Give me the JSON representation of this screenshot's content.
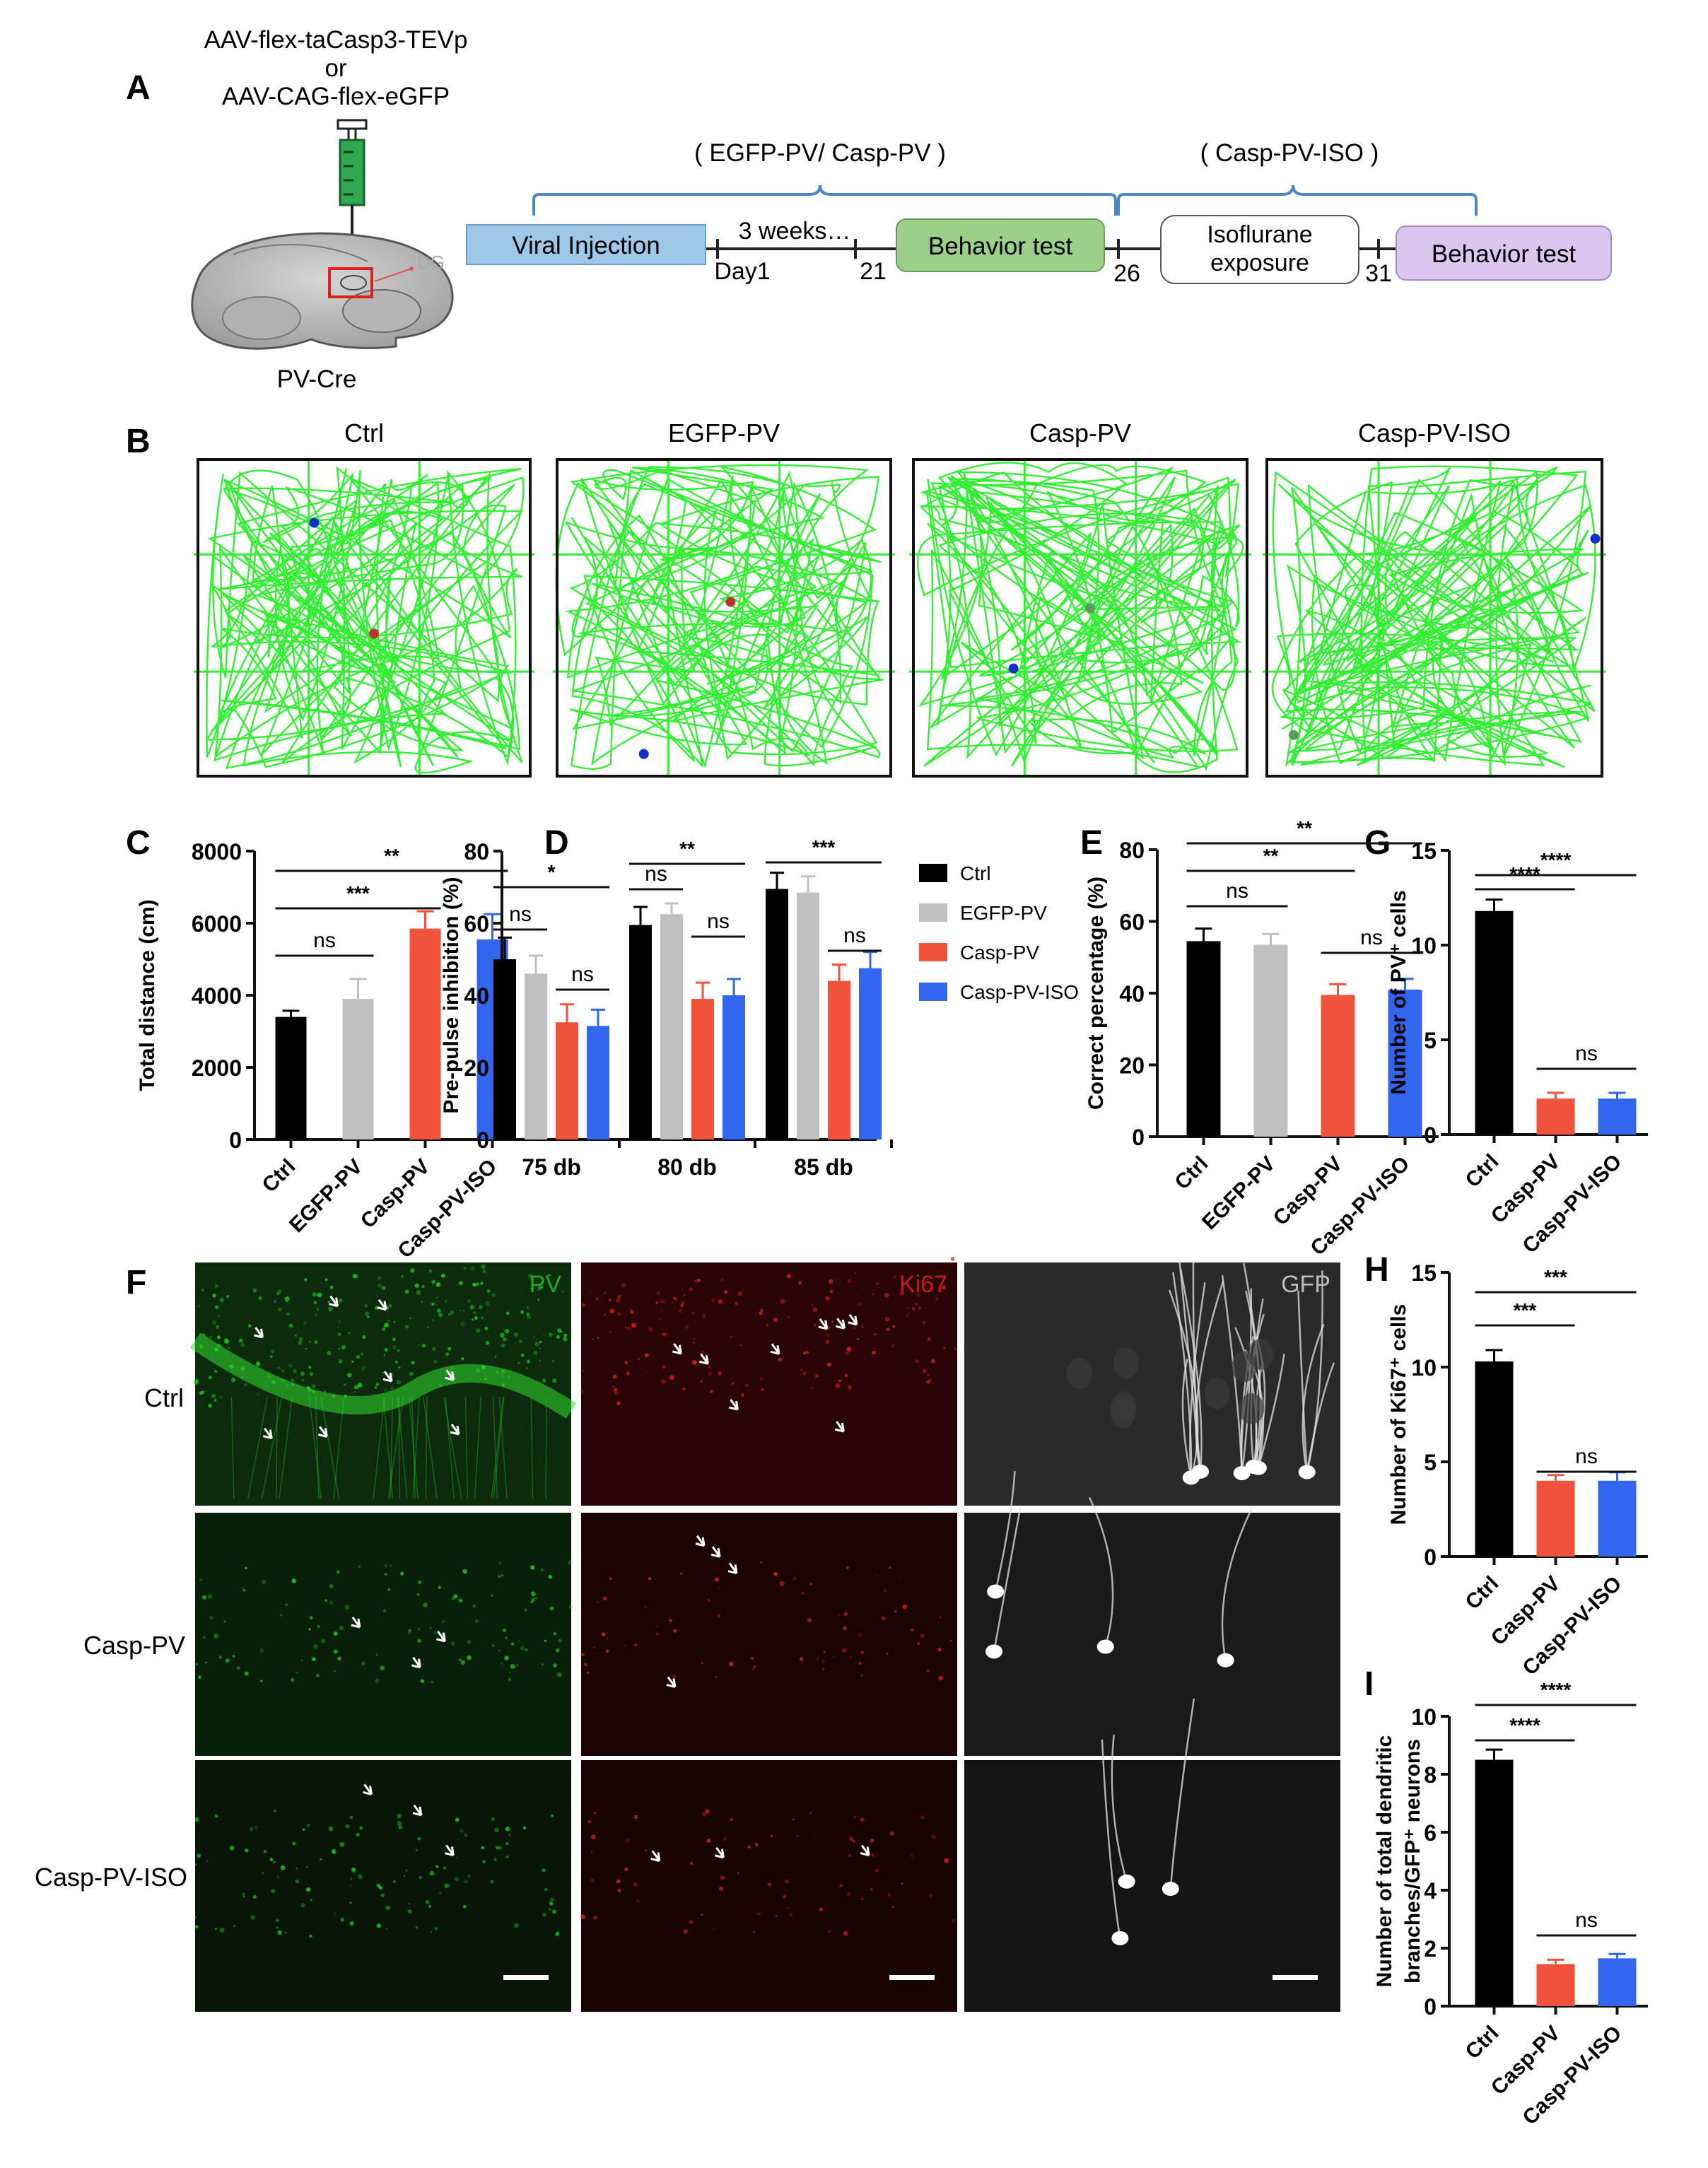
{
  "panels": {
    "A": {
      "letter": "A",
      "virus_line1": "AAV-flex-taCasp3-TEVp",
      "virus_or": "or",
      "virus_line2": "AAV-CAG-flex-eGFP",
      "region": "DG",
      "mouse": "PV-Cre",
      "group_label_1": "( EGFP-PV/ Casp-PV )",
      "group_label_2": "( Casp-PV-ISO )",
      "box_injection": "Viral Injection",
      "duration": "3 weeks…",
      "day1": "Day1",
      "day21": "21",
      "box_behavior_1": "Behavior test",
      "day26": "26",
      "box_iso_line1": "Isoflurane",
      "box_iso_line2": "exposure",
      "day31": "31",
      "box_behavior_2": "Behavior test"
    },
    "B": {
      "letter": "B",
      "groups": [
        "Ctrl",
        "EGFP-PV",
        "Casp-PV",
        "Casp-PV-ISO"
      ]
    },
    "C": {
      "letter": "C"
    },
    "D": {
      "letter": "D"
    },
    "E": {
      "letter": "E"
    },
    "F": {
      "letter": "F",
      "channels": [
        "PV",
        "Ki67",
        "GFP"
      ],
      "rows": [
        "Ctrl",
        "Casp-PV",
        "Casp-PV-ISO"
      ]
    },
    "G": {
      "letter": "G"
    },
    "H": {
      "letter": "H"
    },
    "I": {
      "letter": "I"
    }
  },
  "colors": {
    "ctrl": "#000000",
    "egfp_pv": "#c0c0c0",
    "casp_pv": "#f0523a",
    "casp_pv_iso": "#3366ee",
    "track": "#33ee33",
    "injection_box": "#9ec7e8",
    "behavior_box_1": "#9cd08a",
    "behavior_box_2": "#dcc6f0",
    "bracket": "#4a86c8"
  },
  "chart_data": [
    {
      "panel": "C",
      "type": "bar",
      "ylabel": "Total distance (cm)",
      "ylim": [
        0,
        8000
      ],
      "yticks": [
        0,
        2000,
        4000,
        6000,
        8000
      ],
      "categories": [
        "Ctrl",
        "EGFP-PV",
        "Casp-PV",
        "Casp-PV-ISO"
      ],
      "values": [
        3400,
        3900,
        5850,
        5550
      ],
      "errors": [
        170,
        550,
        480,
        700
      ],
      "colors": [
        "#000000",
        "#c0c0c0",
        "#f0523a",
        "#3366ee"
      ],
      "significance": [
        {
          "from": 0,
          "to": 1,
          "label": "ns"
        },
        {
          "from": 0,
          "to": 2,
          "label": "***"
        },
        {
          "from": 0,
          "to": 3,
          "label": "**"
        }
      ]
    },
    {
      "panel": "D",
      "type": "bar",
      "ylabel": "Pre-pulse inhibition (%)",
      "ylim": [
        0,
        80
      ],
      "yticks": [
        0,
        20,
        40,
        60,
        80
      ],
      "categories": [
        "75 db",
        "80 db",
        "85 db"
      ],
      "series": [
        {
          "name": "Ctrl",
          "values": [
            50,
            59.5,
            69.5
          ],
          "errors": [
            6,
            5,
            4.5
          ],
          "color": "#000000"
        },
        {
          "name": "EGFP-PV",
          "values": [
            46,
            62.5,
            68.5
          ],
          "errors": [
            5,
            3,
            4.5
          ],
          "color": "#c0c0c0"
        },
        {
          "name": "Casp-PV",
          "values": [
            32.5,
            39,
            44
          ],
          "errors": [
            5,
            4.5,
            4.5
          ],
          "color": "#f0523a"
        },
        {
          "name": "Casp-PV-ISO",
          "values": [
            31.5,
            40,
            47.5
          ],
          "errors": [
            4.5,
            4.5,
            4.5
          ],
          "color": "#3366ee"
        }
      ],
      "significance": [
        {
          "category": 0,
          "from": 0,
          "to": 1,
          "label": "ns"
        },
        {
          "category": 0,
          "from": 0,
          "to": 3,
          "label": "*"
        },
        {
          "category": 0,
          "from": 2,
          "to": 3,
          "label": "ns"
        },
        {
          "category": 1,
          "from": 0,
          "to": 1,
          "label": "ns"
        },
        {
          "category": 1,
          "from": 0,
          "to": 3,
          "label": "**"
        },
        {
          "category": 1,
          "from": 2,
          "to": 3,
          "label": "ns"
        },
        {
          "category": 2,
          "from": 0,
          "to": 3,
          "label": "***"
        },
        {
          "category": 2,
          "from": 2,
          "to": 3,
          "label": "ns"
        }
      ]
    },
    {
      "panel": "E",
      "type": "bar",
      "ylabel": "Correct percentage (%)",
      "ylim": [
        0,
        80
      ],
      "yticks": [
        0,
        20,
        40,
        60,
        80
      ],
      "categories": [
        "Ctrl",
        "EGFP-PV",
        "Casp-PV",
        "Casp-PV-ISO"
      ],
      "values": [
        54.5,
        53.5,
        39.5,
        41
      ],
      "errors": [
        3.5,
        3,
        3,
        3
      ],
      "colors": [
        "#000000",
        "#c0c0c0",
        "#f0523a",
        "#3366ee"
      ],
      "significance": [
        {
          "from": 0,
          "to": 1,
          "label": "ns"
        },
        {
          "from": 0,
          "to": 2,
          "label": "**"
        },
        {
          "from": 0,
          "to": 3,
          "label": "**"
        },
        {
          "from": 2,
          "to": 3,
          "label": "ns"
        }
      ]
    },
    {
      "panel": "G",
      "type": "bar",
      "ylabel": "Number of PV⁺ cells",
      "ylim": [
        0,
        15
      ],
      "yticks": [
        0,
        5,
        10,
        15
      ],
      "categories": [
        "Ctrl",
        "Casp-PV",
        "Casp-PV-ISO"
      ],
      "values": [
        11.8,
        1.9,
        1.9
      ],
      "errors": [
        0.6,
        0.3,
        0.3
      ],
      "colors": [
        "#000000",
        "#f0523a",
        "#3366ee"
      ],
      "significance": [
        {
          "from": 0,
          "to": 1,
          "label": "****"
        },
        {
          "from": 0,
          "to": 2,
          "label": "****"
        },
        {
          "from": 1,
          "to": 2,
          "label": "ns"
        }
      ]
    },
    {
      "panel": "H",
      "type": "bar",
      "ylabel": "Number of Ki67⁺ cells",
      "ylim": [
        0,
        15
      ],
      "yticks": [
        0,
        5,
        10,
        15
      ],
      "categories": [
        "Ctrl",
        "Casp-PV",
        "Casp-PV-ISO"
      ],
      "values": [
        10.3,
        4.0,
        4.0
      ],
      "errors": [
        0.6,
        0.3,
        0.45
      ],
      "colors": [
        "#000000",
        "#f0523a",
        "#3366ee"
      ],
      "significance": [
        {
          "from": 0,
          "to": 1,
          "label": "***"
        },
        {
          "from": 0,
          "to": 2,
          "label": "***"
        },
        {
          "from": 1,
          "to": 2,
          "label": "ns"
        }
      ]
    },
    {
      "panel": "I",
      "type": "bar",
      "ylabel_lines": [
        "Number of total dendritic",
        "branches/GFP⁺ neurons"
      ],
      "ylim": [
        0,
        10
      ],
      "yticks": [
        0,
        2,
        4,
        6,
        8,
        10
      ],
      "categories": [
        "Ctrl",
        "Casp-PV",
        "Casp-PV-ISO"
      ],
      "values": [
        8.5,
        1.45,
        1.65
      ],
      "errors": [
        0.35,
        0.15,
        0.15
      ],
      "colors": [
        "#000000",
        "#f0523a",
        "#3366ee"
      ],
      "significance": [
        {
          "from": 0,
          "to": 1,
          "label": "****"
        },
        {
          "from": 0,
          "to": 2,
          "label": "****"
        },
        {
          "from": 1,
          "to": 2,
          "label": "ns"
        }
      ]
    }
  ]
}
